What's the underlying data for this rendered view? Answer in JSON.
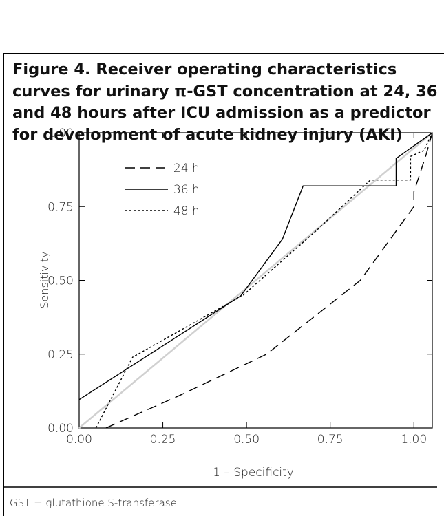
{
  "chart_data": {
    "type": "line",
    "title": "Figure 4. Receiver operating characteristics curves for urinary π-GST concentration at 24, 36 and 48 hours after ICU admission as a predictor for development of acute kidney injury (AKI)",
    "xlabel": "1 – Specificity",
    "ylabel": "Sensitivity",
    "xlim": [
      0,
      1.055
    ],
    "ylim": [
      0,
      1
    ],
    "xticks": [
      {
        "value": 0,
        "label": "0.00"
      },
      {
        "value": 0.25,
        "label": "0.25"
      },
      {
        "value": 0.5,
        "label": "0.50"
      },
      {
        "value": 0.75,
        "label": "0.75"
      },
      {
        "value": 1,
        "label": "1.00"
      }
    ],
    "yticks": [
      {
        "value": 0,
        "label": "0.00"
      },
      {
        "value": 0.25,
        "label": "0.25"
      },
      {
        "value": 0.5,
        "label": "0.50"
      },
      {
        "value": 0.75,
        "label": "0.75"
      },
      {
        "value": 1,
        "label": "1.00"
      }
    ],
    "reference_line": {
      "x": [
        0,
        1.055
      ],
      "values": [
        0,
        1
      ],
      "color": "#d0d0d0"
    },
    "series": [
      {
        "name": "24 h",
        "color": "#000000",
        "dash": "14 8",
        "x": [
          0.08,
          0.3,
          0.56,
          0.84,
          1.0,
          1.0,
          1.035,
          1.055
        ],
        "values": [
          0,
          0.11,
          0.25,
          0.5,
          0.75,
          0.8,
          0.92,
          1.0
        ]
      },
      {
        "name": "36 h",
        "color": "#000000",
        "dash": "none",
        "x": [
          0,
          0.483,
          0.607,
          0.669,
          0.947,
          0.947,
          1.055
        ],
        "values": [
          0.096,
          0.448,
          0.639,
          0.82,
          0.82,
          0.913,
          1.0
        ]
      },
      {
        "name": "48 h",
        "color": "#000000",
        "dash": "3 3",
        "x": [
          0.05,
          0.16,
          0.49,
          0.71,
          0.87,
          0.99,
          0.99,
          1.03,
          1.055
        ],
        "values": [
          0,
          0.24,
          0.45,
          0.67,
          0.84,
          0.84,
          0.92,
          0.94,
          1.0
        ]
      }
    ],
    "legend": "upper left",
    "footnote": "GST = glutathione S-transferase."
  }
}
